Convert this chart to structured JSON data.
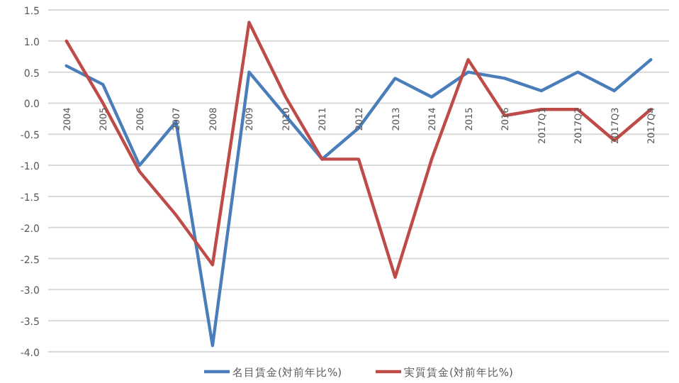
{
  "chart_data": {
    "type": "line",
    "categories": [
      "2004",
      "2005",
      "2006",
      "2007",
      "2008",
      "2009",
      "2010",
      "2011",
      "2012",
      "2013",
      "2014",
      "2015",
      "2016",
      "2017Q1",
      "2017Q2",
      "2017Q3",
      "2017Q4"
    ],
    "series": [
      {
        "name": "名目賃金(対前年比%)",
        "color": "#4a7ebb",
        "values": [
          0.6,
          0.3,
          -1.0,
          -0.3,
          -3.9,
          0.5,
          -0.2,
          -0.9,
          -0.4,
          0.4,
          0.1,
          0.5,
          0.4,
          0.2,
          0.5,
          0.2,
          0.7
        ]
      },
      {
        "name": "実質賃金(対前年比%)",
        "color": "#be4b48",
        "values": [
          1.0,
          0.0,
          -1.1,
          -1.8,
          -2.6,
          1.3,
          0.1,
          -0.9,
          -0.9,
          -2.8,
          -0.9,
          0.7,
          -0.2,
          -0.1,
          -0.1,
          -0.6,
          -0.1
        ]
      }
    ],
    "ylim": [
      -4.0,
      1.5
    ],
    "yticks": [
      {
        "value": -4.0,
        "label": "-4.0"
      },
      {
        "value": -3.5,
        "label": "-3.5"
      },
      {
        "value": -3.0,
        "label": "-3.0"
      },
      {
        "value": -2.5,
        "label": "-2.5"
      },
      {
        "value": -2.0,
        "label": "-2.0"
      },
      {
        "value": -1.5,
        "label": "-1.5"
      },
      {
        "value": -1.0,
        "label": "-1.0"
      },
      {
        "value": -0.5,
        "label": "-0.5"
      },
      {
        "value": 0,
        "label": "0.0"
      },
      {
        "value": 0.5,
        "label": "0.5"
      },
      {
        "value": 1.0,
        "label": "1.0"
      },
      {
        "value": 1.5,
        "label": "1.5"
      }
    ],
    "grid": "y",
    "legend": "bottom",
    "marker": "none",
    "line_style": "solid"
  }
}
